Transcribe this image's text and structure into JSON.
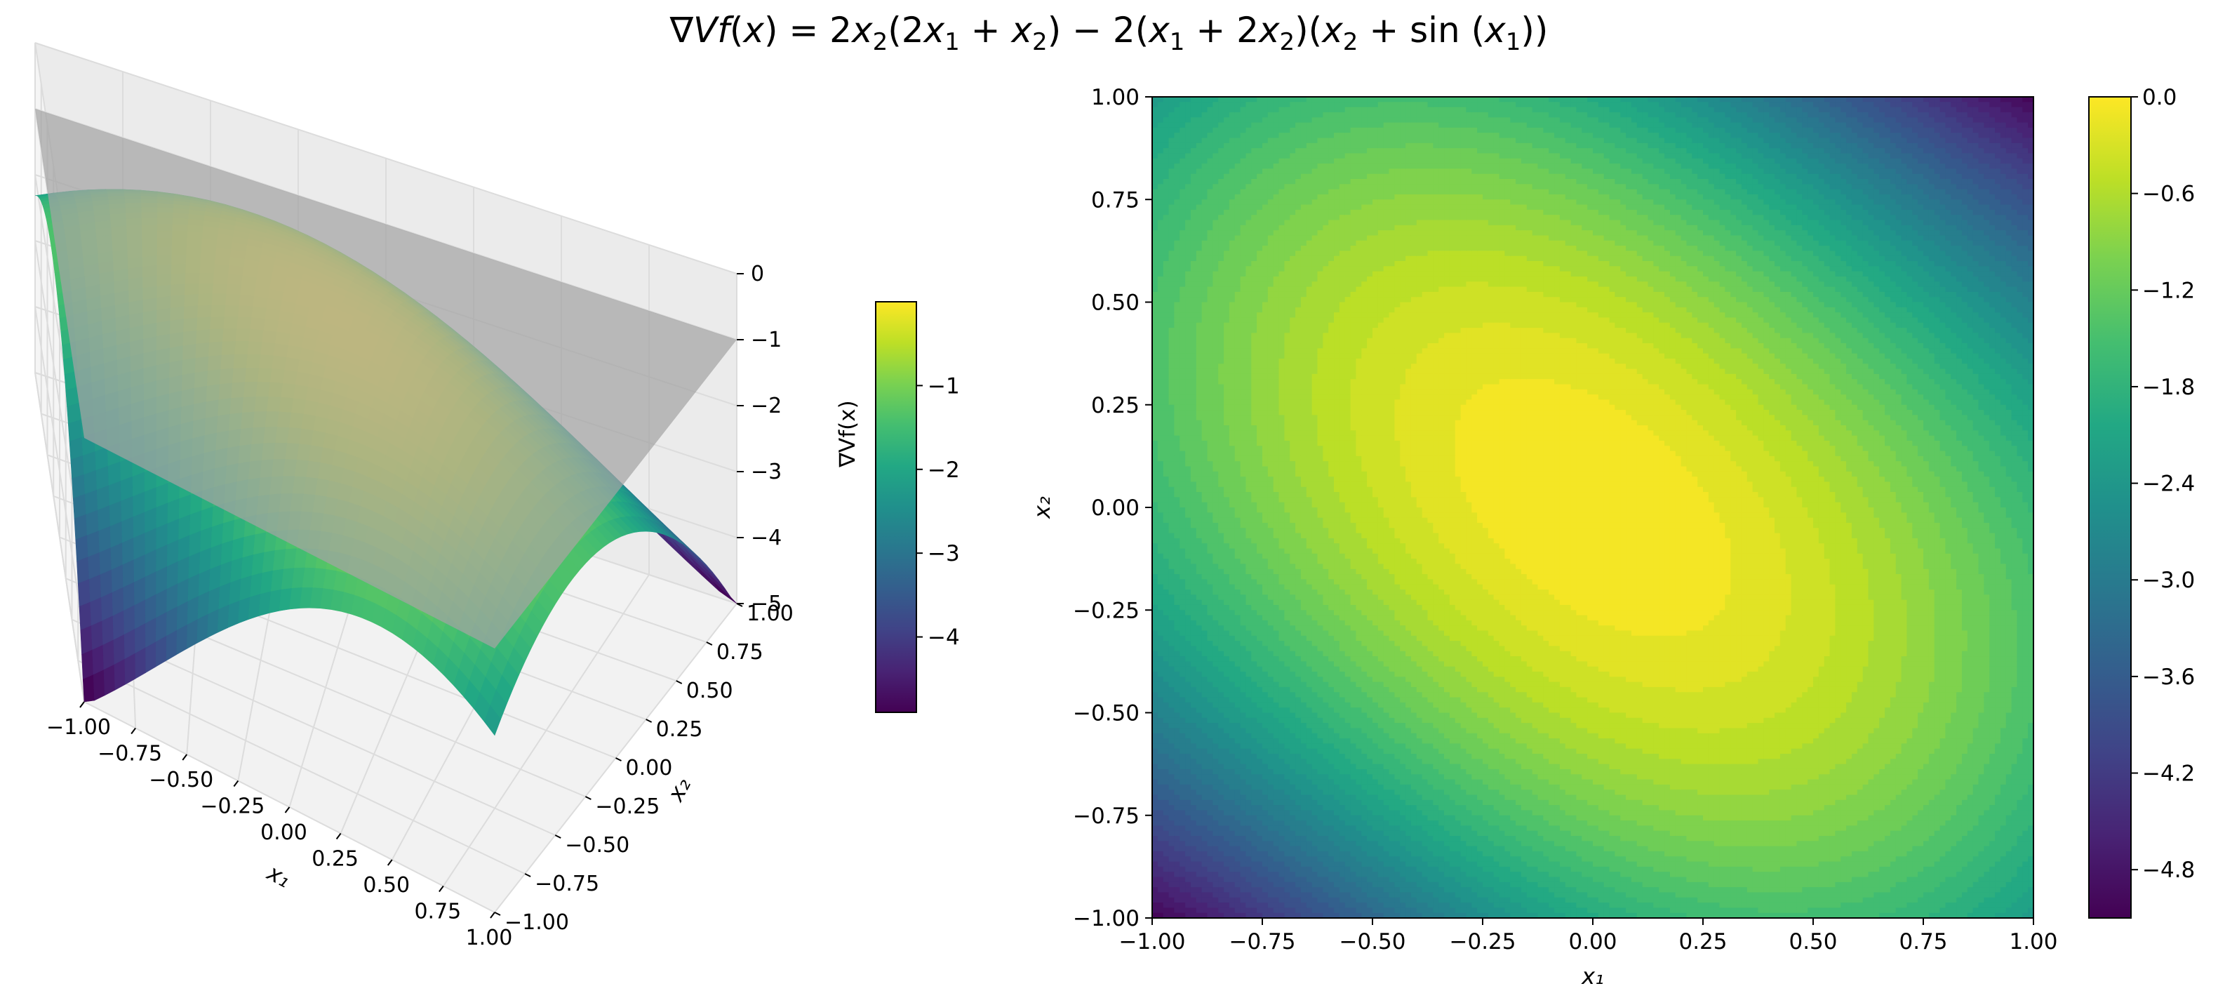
{
  "title": "∇Vf(x) = 2x₂(2x₁ + x₂) − 2(x₁ + 2x₂)(x₂ + sin (x₁))",
  "colors": {
    "colormap": "viridis",
    "plane": "#a3a3a3",
    "pane": "#f2f2f2",
    "grid": "#dcdcdc"
  },
  "chart_data": [
    {
      "type": "surface3d",
      "function": "2*x2*(2*x1 + x2) - 2*(x1 + 2*x2)*(x2 + sin(x1))",
      "xlabel": "x₁",
      "ylabel": "x₂",
      "zlabel": "",
      "xlim": [
        -1.0,
        1.0
      ],
      "ylim": [
        -1.0,
        1.0
      ],
      "zlim": [
        -5,
        0
      ],
      "x_ticks": [
        "−1.00",
        "−0.75",
        "−0.50",
        "−0.25",
        "0.00",
        "0.25",
        "0.50",
        "0.75",
        "1.00"
      ],
      "y_ticks": [
        "−1.00",
        "−0.75",
        "−0.50",
        "−0.25",
        "0.00",
        "0.25",
        "0.50",
        "0.75",
        "1.00"
      ],
      "z_ticks": [
        "0",
        "−1",
        "−2",
        "−3",
        "−4",
        "−5"
      ],
      "z_tick_values": [
        0,
        -1,
        -2,
        -3,
        -4,
        -5
      ],
      "plane_z": -1,
      "corner_values": {
        "x1=-1,x2=-1": -4.68,
        "x1=1,x2=1": -4.68,
        "x1=-1,x2=1": -1.68,
        "x1=1,x2=-1": -1.68,
        "x1=0,x2=0": 0
      },
      "colorbar": {
        "label": "∇Vf(x)",
        "ticks": [
          "−1",
          "−2",
          "−3",
          "−4"
        ],
        "tick_values": [
          -1,
          -2,
          -3,
          -4
        ],
        "range": [
          -4.9,
          0
        ]
      },
      "grid": true
    },
    {
      "type": "contourf",
      "function": "2*x2*(2*x1 + x2) - 2*(x1 + 2*x2)*(x2 + sin(x1))",
      "xlabel": "x₁",
      "ylabel": "x₂",
      "xlim": [
        -1.0,
        1.0
      ],
      "ylim": [
        -1.0,
        1.0
      ],
      "x_ticks": [
        "−1.00",
        "−0.75",
        "−0.50",
        "−0.25",
        "0.00",
        "0.25",
        "0.50",
        "0.75",
        "1.00"
      ],
      "x_tick_values": [
        -1,
        -0.75,
        -0.5,
        -0.25,
        0,
        0.25,
        0.5,
        0.75,
        1
      ],
      "y_ticks": [
        "−1.00",
        "−0.75",
        "−0.50",
        "−0.25",
        "0.00",
        "0.25",
        "0.50",
        "0.75",
        "1.00"
      ],
      "y_tick_values": [
        -1,
        -0.75,
        -0.5,
        -0.25,
        0,
        0.25,
        0.5,
        0.75,
        1
      ],
      "value_range": [
        -5.1,
        0.0
      ],
      "levels_step": 0.15,
      "colorbar": {
        "ticks": [
          "0.0",
          "−0.6",
          "−1.2",
          "−1.8",
          "−2.4",
          "−3.0",
          "−3.6",
          "−4.2",
          "−4.8"
        ],
        "tick_values": [
          0.0,
          -0.6,
          -1.2,
          -1.8,
          -2.4,
          -3.0,
          -3.6,
          -4.2,
          -4.8
        ],
        "range": [
          -5.1,
          0.0
        ]
      }
    }
  ]
}
